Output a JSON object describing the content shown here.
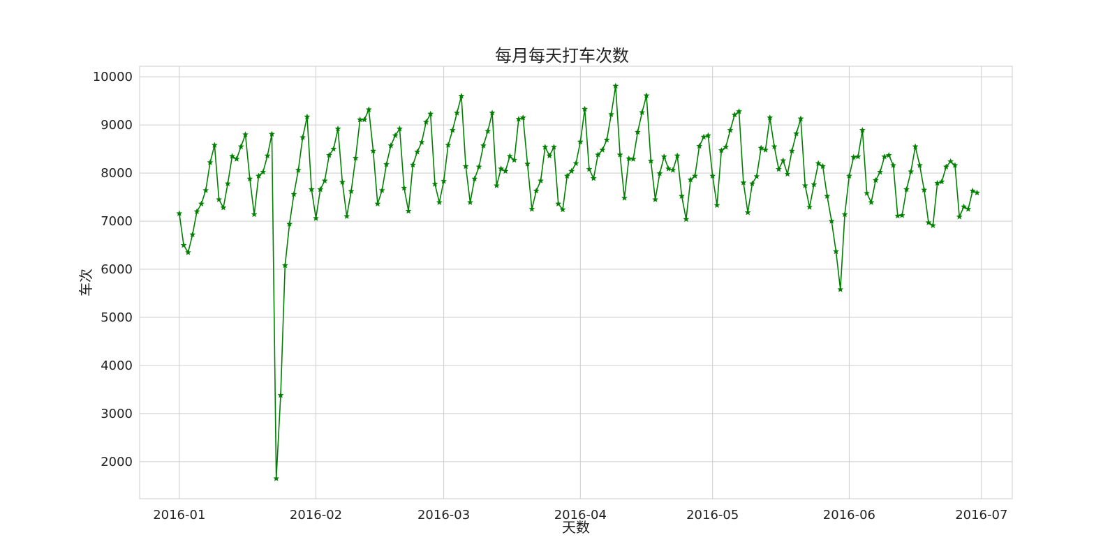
{
  "chart_data": {
    "type": "line",
    "title": "每月每天打车次数",
    "xlabel": "天数",
    "ylabel": "车次",
    "x_start": "2016-01-01",
    "x_end": "2016-06-30",
    "xlim": [
      "2015-12-23",
      "2016-07-08"
    ],
    "ylim": [
      1230,
      10220
    ],
    "yticks": [
      2000,
      3000,
      4000,
      5000,
      6000,
      7000,
      8000,
      9000,
      10000
    ],
    "xticks": [
      "2016-01-01",
      "2016-02-01",
      "2016-03-01",
      "2016-04-01",
      "2016-05-01",
      "2016-06-01",
      "2016-07-01"
    ],
    "xtick_labels": [
      "2016-01",
      "2016-02",
      "2016-03",
      "2016-04",
      "2016-05",
      "2016-06",
      "2016-07"
    ],
    "grid": true,
    "series": [
      {
        "color": "#008000",
        "marker": "star",
        "values": [
          7160,
          6500,
          6350,
          6720,
          7200,
          7360,
          7640,
          8220,
          8580,
          7450,
          7280,
          7780,
          8350,
          8290,
          8550,
          8800,
          7880,
          7140,
          7940,
          8020,
          8360,
          8810,
          1650,
          3380,
          6080,
          6940,
          7560,
          8060,
          8740,
          9170,
          7660,
          7060,
          7660,
          7840,
          8370,
          8500,
          8920,
          7810,
          7100,
          7620,
          8310,
          9110,
          9110,
          9320,
          8460,
          7360,
          7640,
          8180,
          8570,
          8780,
          8920,
          7690,
          7210,
          8170,
          8440,
          8640,
          9060,
          9230,
          7770,
          7390,
          7830,
          8580,
          8890,
          9250,
          9600,
          8140,
          7390,
          7880,
          8130,
          8570,
          8870,
          9250,
          7740,
          8090,
          8040,
          8350,
          8270,
          9120,
          9150,
          8190,
          7250,
          7630,
          7840,
          8540,
          8360,
          8540,
          7360,
          7240,
          7940,
          8040,
          8200,
          8650,
          9330,
          8080,
          7890,
          8380,
          8480,
          8690,
          9220,
          9810,
          8380,
          7480,
          8300,
          8290,
          8850,
          9260,
          9610,
          8250,
          7450,
          7990,
          8340,
          8090,
          8060,
          8360,
          7520,
          7040,
          7860,
          7940,
          8560,
          8750,
          8780,
          7940,
          7330,
          8470,
          8540,
          8890,
          9210,
          9280,
          7800,
          7180,
          7780,
          7930,
          8520,
          8480,
          9150,
          8550,
          8080,
          8260,
          7980,
          8460,
          8820,
          9130,
          7740,
          7290,
          7760,
          8200,
          8140,
          7520,
          7000,
          6370,
          5580,
          7140,
          7940,
          8330,
          8340,
          8890,
          7580,
          7390,
          7850,
          8020,
          8340,
          8370,
          8160,
          7110,
          7120,
          7660,
          8030,
          8550,
          8160,
          7650,
          6970,
          6910,
          7790,
          7820,
          8130,
          8240,
          8160,
          7090,
          7300,
          7250,
          7630,
          7590
        ]
      }
    ]
  }
}
